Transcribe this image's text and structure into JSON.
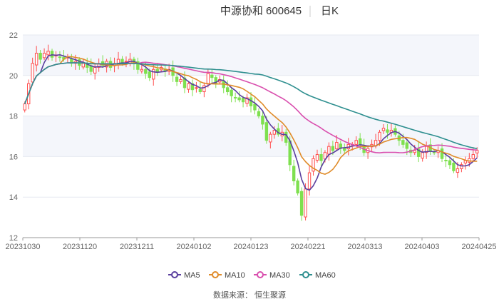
{
  "header": {
    "name_code": "中源协和 600645",
    "period": "日K"
  },
  "source_label": "数据来源：  恒生聚源",
  "chart_data": {
    "type": "candlestick",
    "ylim": [
      12,
      22
    ],
    "yticks": [
      12,
      14,
      16,
      18,
      20,
      22
    ],
    "x_tick_labels": [
      "20231030",
      "20231120",
      "20231211",
      "20240102",
      "20240123",
      "20240221",
      "20240313",
      "20240403",
      "20240425"
    ],
    "grid": true,
    "bands": [
      [
        16,
        18
      ],
      [
        20,
        22
      ]
    ],
    "colors": {
      "up": "#ff4d4d",
      "down": "#7ee04f",
      "MA5": "#5a3f9e",
      "MA10": "#e08c2a",
      "MA30": "#d94fae",
      "MA60": "#2e8f8f"
    },
    "legend": {
      "position": "bottom",
      "items": [
        {
          "key": "MA5",
          "label": "MA5"
        },
        {
          "key": "MA10",
          "label": "MA10"
        },
        {
          "key": "MA30",
          "label": "MA30"
        },
        {
          "key": "MA60",
          "label": "MA60"
        }
      ]
    },
    "close": [
      18.6,
      19.6,
      20.6,
      21.1,
      20.8,
      21.1,
      21.2,
      20.9,
      21.0,
      20.9,
      20.8,
      20.9,
      20.6,
      20.7,
      20.5,
      20.6,
      20.4,
      20.2,
      20.4,
      20.6,
      20.5,
      20.7,
      20.4,
      20.6,
      20.8,
      20.6,
      20.7,
      20.8,
      20.6,
      20.3,
      20.3,
      20.1,
      19.9,
      20.3,
      20.2,
      20.4,
      20.2,
      20.3,
      20.0,
      19.7,
      19.8,
      19.4,
      19.6,
      19.3,
      19.4,
      19.2,
      19.5,
      20.1,
      19.9,
      19.6,
      19.8,
      19.4,
      19.2,
      19.0,
      18.9,
      18.8,
      18.7,
      18.9,
      18.5,
      18.3,
      18.0,
      17.6,
      16.8,
      17.1,
      17.3,
      17.1,
      17.2,
      16.7,
      15.6,
      14.8,
      14.2,
      13.1,
      14.4,
      15.2,
      15.9,
      16.1,
      15.8,
      16.2,
      16.5,
      16.3,
      16.7,
      16.4,
      16.3,
      16.6,
      16.6,
      16.8,
      16.6,
      16.2,
      16.4,
      16.6,
      16.8,
      17.2,
      17.4,
      17.2,
      17.3,
      17.1,
      16.8,
      16.6,
      16.4,
      16.2,
      16.3,
      16.0,
      16.2,
      16.5,
      16.3,
      16.2,
      16.3,
      15.9,
      15.8,
      15.6,
      15.3,
      15.4,
      15.6,
      15.8,
      15.9,
      16.1,
      16.3
    ]
  }
}
